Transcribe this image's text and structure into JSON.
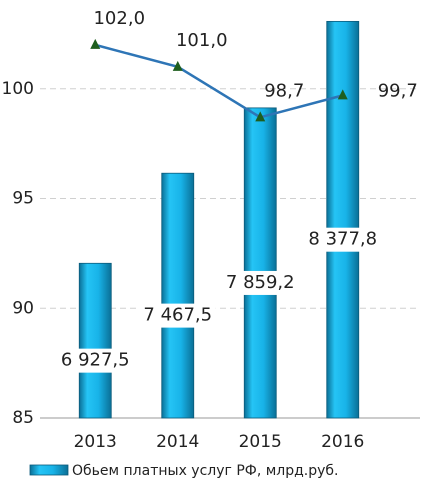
{
  "chart_data": {
    "type": "bar-line",
    "categories": [
      "2013",
      "2014",
      "2015",
      "2016"
    ],
    "series": [
      {
        "name": "Обьем платных услуг РФ, млрд.руб.",
        "type": "bar",
        "axis": "y2",
        "color": "#19b4e6",
        "values": [
          6927.5,
          7467.5,
          7859.2,
          8377.8
        ],
        "value_labels": [
          "6 927,5",
          "7 467,5",
          "7 859,2",
          "8 377,8"
        ]
      },
      {
        "type": "line",
        "color": "#2e75b6",
        "values": [
          102.0,
          101.0,
          98.7,
          99.7
        ],
        "value_labels": [
          "102,0",
          "101,0",
          "98,7",
          "99,7"
        ]
      }
    ],
    "ylim": [
      85,
      104
    ],
    "yticks": [
      85,
      90,
      95,
      100
    ],
    "y2lim": [
      6000,
      8500
    ],
    "grid": true,
    "legend": "bottom"
  }
}
